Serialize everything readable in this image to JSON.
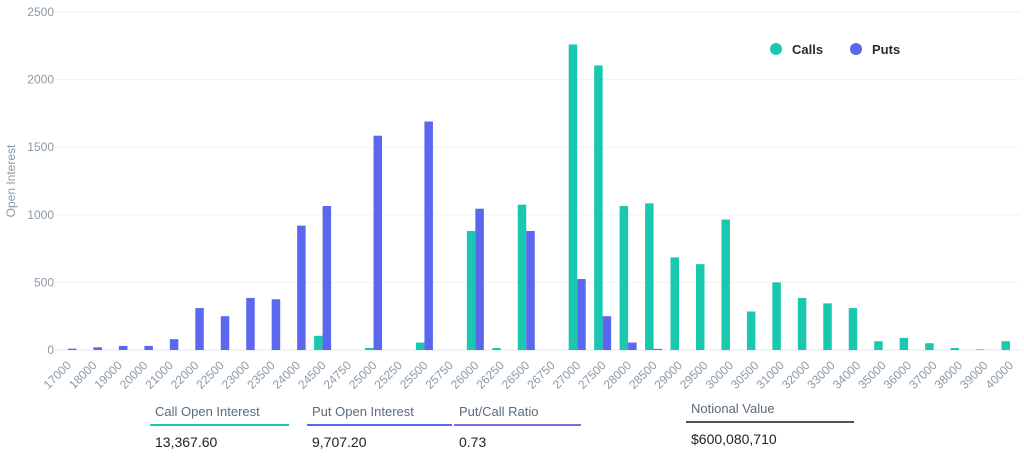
{
  "chart_data": {
    "type": "bar",
    "ylabel": "Open Interest",
    "xlabel": "",
    "ylim": [
      0,
      2500
    ],
    "yticks": [
      0,
      500,
      1000,
      1500,
      2000,
      2500
    ],
    "grid": true,
    "legend_position": "top-right",
    "categories": [
      "17000",
      "18000",
      "19000",
      "20000",
      "21000",
      "22000",
      "22500",
      "23000",
      "23500",
      "24000",
      "24500",
      "24750",
      "25000",
      "25250",
      "25500",
      "25750",
      "26000",
      "26250",
      "26500",
      "26750",
      "27000",
      "27500",
      "28000",
      "28500",
      "29000",
      "29500",
      "30000",
      "30500",
      "31000",
      "32000",
      "33000",
      "34000",
      "35000",
      "36000",
      "37000",
      "38000",
      "39000",
      "40000"
    ],
    "series": [
      {
        "name": "Calls",
        "color": "#1ac8b0",
        "values": [
          0,
          0,
          0,
          0,
          0,
          0,
          0,
          0,
          0,
          0,
          105,
          0,
          15,
          0,
          55,
          0,
          880,
          15,
          1075,
          0,
          2260,
          2105,
          1065,
          1085,
          685,
          635,
          965,
          285,
          500,
          385,
          345,
          310,
          65,
          90,
          50,
          15,
          5,
          65
        ]
      },
      {
        "name": "Puts",
        "color": "#5b67ef",
        "values": [
          10,
          20,
          30,
          30,
          80,
          310,
          250,
          385,
          375,
          920,
          1065,
          0,
          1585,
          0,
          1690,
          0,
          1045,
          0,
          880,
          0,
          525,
          250,
          55,
          8,
          0,
          0,
          0,
          0,
          0,
          0,
          0,
          0,
          0,
          0,
          0,
          0,
          0,
          0
        ]
      }
    ]
  },
  "stats": [
    {
      "label": "Call Open Interest",
      "value": "13,367.60",
      "color": "#1ac8b0"
    },
    {
      "label": "Put Open Interest",
      "value": "9,707.20",
      "color": "#5b67ef"
    },
    {
      "label": "Put/Call Ratio",
      "value": "0.73",
      "color": "#7b6fe0"
    },
    {
      "label": "Notional Value",
      "value": "$600,080,710",
      "color": "#4a5560"
    }
  ]
}
